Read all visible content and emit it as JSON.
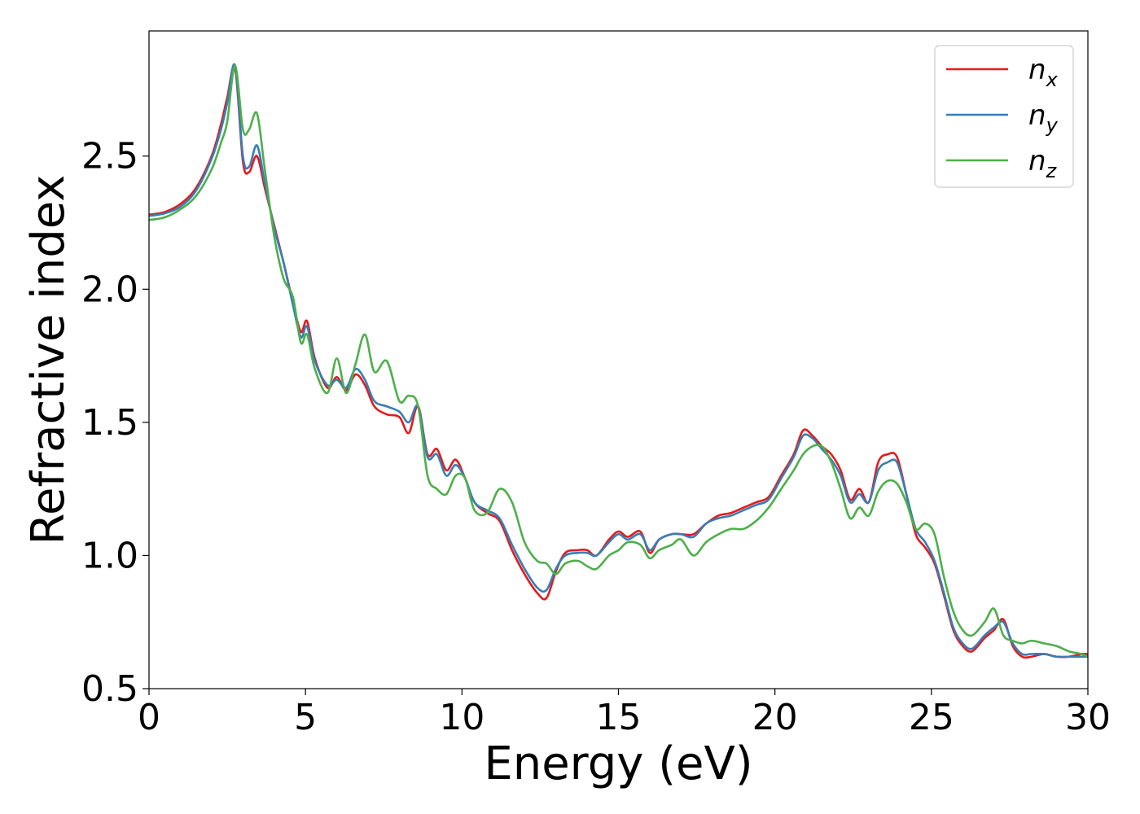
{
  "chart_data": {
    "type": "line",
    "xlabel": "Energy (eV)",
    "ylabel": "Refractive index",
    "xlim": [
      0,
      30
    ],
    "ylim": [
      0.5,
      2.97
    ],
    "xticks": [
      0,
      5,
      10,
      15,
      20,
      25,
      30
    ],
    "yticks": [
      0.5,
      1.0,
      1.5,
      2.0,
      2.5
    ],
    "xtick_labels": [
      "0",
      "5",
      "10",
      "15",
      "20",
      "25",
      "30"
    ],
    "ytick_labels": [
      "0.5",
      "1.0",
      "1.5",
      "2.0",
      "2.5"
    ],
    "grid": false,
    "legend_position": "top-right",
    "series": [
      {
        "base": "n",
        "sub": "x",
        "color": "#e41a1c",
        "x": [
          0,
          0.5,
          1,
          1.5,
          2,
          2.3,
          2.5,
          2.75,
          3,
          3.2,
          3.45,
          3.7,
          4,
          4.3,
          4.6,
          4.85,
          5.05,
          5.3,
          5.7,
          6,
          6.3,
          6.6,
          6.9,
          7.2,
          7.6,
          8,
          8.3,
          8.6,
          8.9,
          9.2,
          9.5,
          9.8,
          10.1,
          10.4,
          10.8,
          11.2,
          11.6,
          12,
          12.4,
          12.7,
          13,
          13.3,
          13.7,
          14,
          14.3,
          14.7,
          15,
          15.3,
          15.7,
          16,
          16.3,
          16.7,
          17,
          17.4,
          17.8,
          18.2,
          18.6,
          19,
          19.4,
          19.8,
          20.2,
          20.6,
          20.9,
          21.2,
          21.5,
          21.8,
          22.1,
          22.4,
          22.7,
          23,
          23.3,
          23.6,
          23.9,
          24.2,
          24.5,
          24.8,
          25.1,
          25.4,
          25.7,
          26,
          26.3,
          26.7,
          27,
          27.3,
          27.6,
          27.9,
          28.2,
          28.6,
          29,
          29.4,
          29.8,
          30
        ],
        "y": [
          2.28,
          2.29,
          2.32,
          2.38,
          2.5,
          2.62,
          2.72,
          2.83,
          2.48,
          2.44,
          2.5,
          2.38,
          2.24,
          2.1,
          1.95,
          1.84,
          1.88,
          1.74,
          1.63,
          1.67,
          1.62,
          1.68,
          1.64,
          1.56,
          1.53,
          1.52,
          1.46,
          1.56,
          1.38,
          1.4,
          1.32,
          1.36,
          1.29,
          1.2,
          1.16,
          1.13,
          1.02,
          0.93,
          0.86,
          0.84,
          0.94,
          1.01,
          1.02,
          1.02,
          1.0,
          1.06,
          1.09,
          1.07,
          1.09,
          1.01,
          1.06,
          1.08,
          1.08,
          1.08,
          1.12,
          1.15,
          1.16,
          1.18,
          1.2,
          1.22,
          1.3,
          1.38,
          1.47,
          1.45,
          1.41,
          1.38,
          1.32,
          1.21,
          1.25,
          1.2,
          1.35,
          1.38,
          1.37,
          1.23,
          1.08,
          1.03,
          0.97,
          0.85,
          0.72,
          0.66,
          0.64,
          0.69,
          0.72,
          0.76,
          0.66,
          0.62,
          0.62,
          0.63,
          0.62,
          0.62,
          0.63,
          0.63
        ]
      },
      {
        "base": "n",
        "sub": "y",
        "color": "#377eb8",
        "x": [
          0,
          0.5,
          1,
          1.5,
          2,
          2.3,
          2.5,
          2.75,
          3,
          3.2,
          3.45,
          3.7,
          4,
          4.3,
          4.6,
          4.85,
          5.05,
          5.3,
          5.7,
          6,
          6.3,
          6.6,
          6.9,
          7.2,
          7.6,
          8,
          8.3,
          8.6,
          8.9,
          9.2,
          9.5,
          9.8,
          10.1,
          10.4,
          10.8,
          11.2,
          11.6,
          12,
          12.4,
          12.7,
          13,
          13.3,
          13.7,
          14,
          14.3,
          14.7,
          15,
          15.3,
          15.7,
          16,
          16.3,
          16.7,
          17,
          17.4,
          17.8,
          18.2,
          18.6,
          19,
          19.4,
          19.8,
          20.2,
          20.6,
          20.9,
          21.2,
          21.5,
          21.8,
          22.1,
          22.4,
          22.7,
          23,
          23.3,
          23.6,
          23.9,
          24.2,
          24.5,
          24.8,
          25.1,
          25.4,
          25.7,
          26,
          26.3,
          26.7,
          27,
          27.3,
          27.6,
          27.9,
          28.2,
          28.6,
          29,
          29.4,
          29.8,
          30
        ],
        "y": [
          2.275,
          2.285,
          2.31,
          2.37,
          2.49,
          2.6,
          2.7,
          2.84,
          2.5,
          2.46,
          2.54,
          2.4,
          2.23,
          2.1,
          1.94,
          1.82,
          1.86,
          1.73,
          1.64,
          1.66,
          1.63,
          1.7,
          1.66,
          1.58,
          1.56,
          1.54,
          1.5,
          1.56,
          1.37,
          1.38,
          1.3,
          1.34,
          1.29,
          1.2,
          1.17,
          1.14,
          1.04,
          0.95,
          0.88,
          0.87,
          0.95,
          1.0,
          1.01,
          1.01,
          1.0,
          1.05,
          1.08,
          1.06,
          1.08,
          1.02,
          1.06,
          1.08,
          1.08,
          1.07,
          1.12,
          1.14,
          1.15,
          1.17,
          1.19,
          1.21,
          1.29,
          1.37,
          1.45,
          1.44,
          1.4,
          1.36,
          1.3,
          1.2,
          1.23,
          1.2,
          1.32,
          1.35,
          1.35,
          1.23,
          1.1,
          1.05,
          0.98,
          0.86,
          0.73,
          0.67,
          0.65,
          0.7,
          0.73,
          0.75,
          0.67,
          0.63,
          0.63,
          0.63,
          0.62,
          0.62,
          0.62,
          0.62
        ]
      },
      {
        "base": "n",
        "sub": "z",
        "color": "#4daf4a",
        "x": [
          0,
          0.5,
          1,
          1.5,
          2,
          2.3,
          2.5,
          2.75,
          3,
          3.2,
          3.45,
          3.7,
          4,
          4.3,
          4.6,
          4.85,
          5.05,
          5.3,
          5.7,
          6,
          6.3,
          6.6,
          6.9,
          7.2,
          7.6,
          8,
          8.3,
          8.6,
          8.9,
          9.2,
          9.5,
          9.8,
          10.1,
          10.4,
          10.8,
          11.2,
          11.6,
          12,
          12.4,
          12.7,
          13,
          13.3,
          13.7,
          14,
          14.3,
          14.7,
          15,
          15.3,
          15.7,
          16,
          16.3,
          16.7,
          17,
          17.4,
          17.8,
          18.2,
          18.6,
          19,
          19.4,
          19.8,
          20.2,
          20.6,
          20.9,
          21.2,
          21.5,
          21.8,
          22.1,
          22.4,
          22.7,
          23,
          23.3,
          23.6,
          23.9,
          24.2,
          24.5,
          24.8,
          25.1,
          25.4,
          25.7,
          26,
          26.3,
          26.7,
          27,
          27.3,
          27.6,
          27.9,
          28.2,
          28.6,
          29,
          29.4,
          29.8,
          30
        ],
        "y": [
          2.26,
          2.27,
          2.3,
          2.35,
          2.45,
          2.55,
          2.63,
          2.84,
          2.6,
          2.6,
          2.66,
          2.45,
          2.2,
          2.04,
          1.97,
          1.8,
          1.83,
          1.7,
          1.61,
          1.74,
          1.61,
          1.72,
          1.83,
          1.69,
          1.73,
          1.58,
          1.6,
          1.56,
          1.3,
          1.25,
          1.23,
          1.3,
          1.29,
          1.17,
          1.16,
          1.25,
          1.2,
          1.05,
          0.98,
          0.97,
          0.93,
          0.97,
          0.98,
          0.96,
          0.95,
          1.0,
          1.02,
          1.05,
          1.04,
          0.99,
          1.02,
          1.04,
          1.06,
          1.0,
          1.05,
          1.08,
          1.1,
          1.1,
          1.13,
          1.18,
          1.25,
          1.32,
          1.38,
          1.41,
          1.41,
          1.35,
          1.25,
          1.14,
          1.18,
          1.15,
          1.24,
          1.28,
          1.27,
          1.2,
          1.1,
          1.12,
          1.08,
          0.92,
          0.79,
          0.72,
          0.7,
          0.75,
          0.8,
          0.7,
          0.68,
          0.67,
          0.68,
          0.67,
          0.66,
          0.64,
          0.63,
          0.62
        ]
      }
    ]
  }
}
